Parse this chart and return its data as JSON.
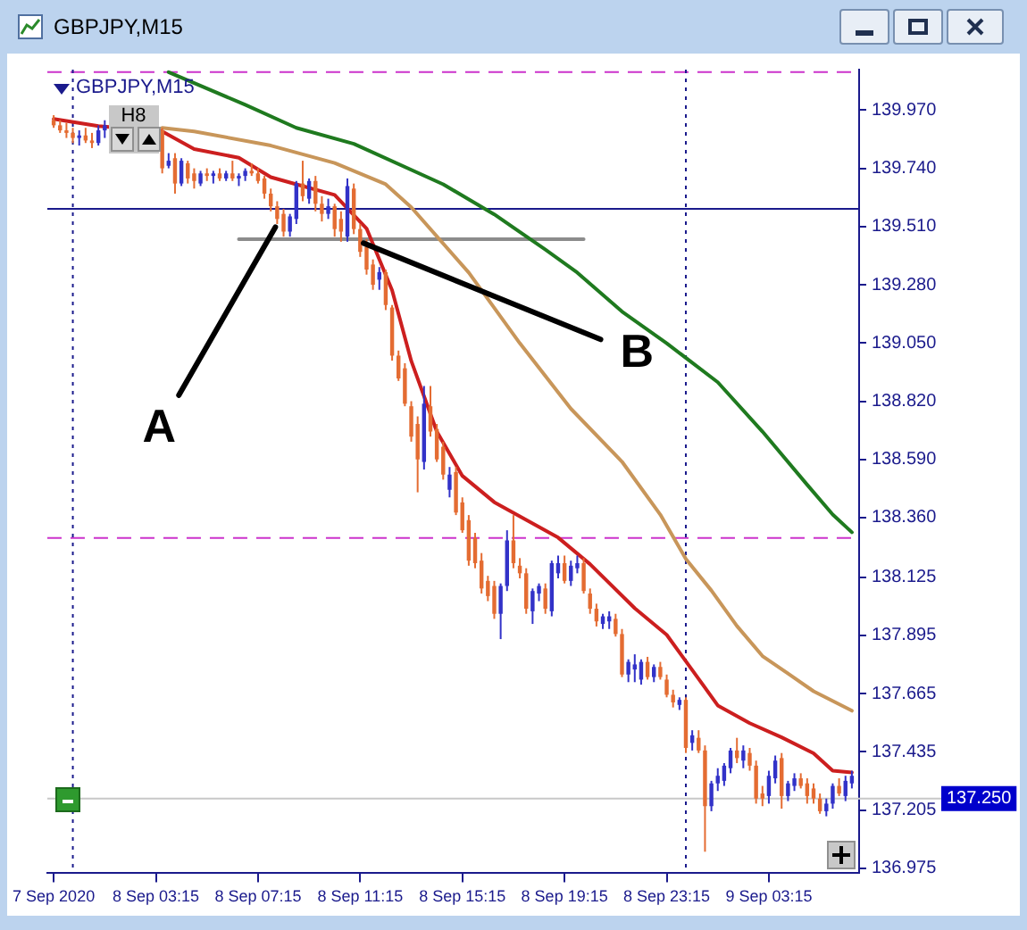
{
  "chart_data": {
    "type": "candlestick",
    "title": "GBPJPY,M15",
    "x": [
      "2020-09-07T23:15",
      "2020-09-07T23:30",
      "2020-09-07T23:45",
      "2020-09-08T00:00",
      "2020-09-08T00:15",
      "2020-09-08T00:30",
      "2020-09-08T00:45",
      "2020-09-08T01:00",
      "2020-09-08T01:15",
      "2020-09-08T03:30",
      "2020-09-08T03:45",
      "2020-09-08T04:00",
      "2020-09-08T04:15",
      "2020-09-08T04:30",
      "2020-09-08T04:45",
      "2020-09-08T05:00",
      "2020-09-08T05:15",
      "2020-09-08T05:30",
      "2020-09-08T05:45",
      "2020-09-08T06:00",
      "2020-09-08T06:15",
      "2020-09-08T06:30",
      "2020-09-08T06:45",
      "2020-09-08T07:00",
      "2020-09-08T07:15",
      "2020-09-08T07:30",
      "2020-09-08T07:45",
      "2020-09-08T08:00",
      "2020-09-08T08:15",
      "2020-09-08T08:30",
      "2020-09-08T08:45",
      "2020-09-08T09:00",
      "2020-09-08T09:15",
      "2020-09-08T09:30",
      "2020-09-08T09:45",
      "2020-09-08T10:00",
      "2020-09-08T10:15",
      "2020-09-08T10:30",
      "2020-09-08T10:45",
      "2020-09-08T11:00",
      "2020-09-08T11:15",
      "2020-09-08T11:30",
      "2020-09-08T11:45",
      "2020-09-08T12:00",
      "2020-09-08T12:15",
      "2020-09-08T12:30",
      "2020-09-08T12:45",
      "2020-09-08T13:00",
      "2020-09-08T13:15",
      "2020-09-08T13:30",
      "2020-09-08T13:45",
      "2020-09-08T14:00",
      "2020-09-08T14:15",
      "2020-09-08T14:30",
      "2020-09-08T14:45",
      "2020-09-08T15:00",
      "2020-09-08T15:15",
      "2020-09-08T15:30",
      "2020-09-08T15:45",
      "2020-09-08T16:00",
      "2020-09-08T16:15",
      "2020-09-08T16:30",
      "2020-09-08T16:45",
      "2020-09-08T17:00",
      "2020-09-08T17:15",
      "2020-09-08T17:30",
      "2020-09-08T17:45",
      "2020-09-08T18:00",
      "2020-09-08T18:15",
      "2020-09-08T18:30",
      "2020-09-08T18:45",
      "2020-09-08T19:00",
      "2020-09-08T19:15",
      "2020-09-08T19:30",
      "2020-09-08T19:45",
      "2020-09-08T20:00",
      "2020-09-08T20:15",
      "2020-09-08T20:30",
      "2020-09-08T20:45",
      "2020-09-08T21:00",
      "2020-09-08T21:15",
      "2020-09-08T21:30",
      "2020-09-08T21:45",
      "2020-09-08T22:00",
      "2020-09-08T22:15",
      "2020-09-08T22:30",
      "2020-09-08T22:45",
      "2020-09-08T23:00",
      "2020-09-08T23:15",
      "2020-09-08T23:30",
      "2020-09-08T23:45",
      "2020-09-09T00:00",
      "2020-09-09T00:15",
      "2020-09-09T00:30",
      "2020-09-09T00:45",
      "2020-09-09T01:00",
      "2020-09-09T01:15",
      "2020-09-09T01:30",
      "2020-09-09T01:45",
      "2020-09-09T02:00",
      "2020-09-09T02:15",
      "2020-09-09T02:30",
      "2020-09-09T02:45",
      "2020-09-09T03:00",
      "2020-09-09T03:15",
      "2020-09-09T03:30",
      "2020-09-09T03:45",
      "2020-09-09T04:00",
      "2020-09-09T04:15",
      "2020-09-09T04:30",
      "2020-09-09T04:45",
      "2020-09-09T05:00",
      "2020-09-09T05:15",
      "2020-09-09T05:30",
      "2020-09-09T05:45",
      "2020-09-09T06:00",
      "2020-09-09T06:15",
      "2020-09-09T06:30"
    ],
    "ohlc": [
      [
        139.93,
        139.95,
        139.9,
        139.91
      ],
      [
        139.91,
        139.93,
        139.88,
        139.89
      ],
      [
        139.89,
        139.92,
        139.86,
        139.88
      ],
      [
        139.88,
        139.9,
        139.84,
        139.86
      ],
      [
        139.86,
        139.89,
        139.83,
        139.87
      ],
      [
        139.87,
        139.9,
        139.84,
        139.85
      ],
      [
        139.85,
        139.88,
        139.82,
        139.84
      ],
      [
        139.84,
        139.91,
        139.83,
        139.89
      ],
      [
        139.89,
        139.93,
        139.86,
        139.91
      ],
      [
        139.89,
        139.9,
        139.72,
        139.74
      ],
      [
        139.75,
        139.8,
        139.74,
        139.77
      ],
      [
        139.78,
        139.8,
        139.64,
        139.68
      ],
      [
        139.68,
        139.78,
        139.67,
        139.77
      ],
      [
        139.76,
        139.77,
        139.68,
        139.7
      ],
      [
        139.72,
        139.74,
        139.66,
        139.69
      ],
      [
        139.68,
        139.73,
        139.67,
        139.72
      ],
      [
        139.72,
        139.74,
        139.69,
        139.71
      ],
      [
        139.71,
        139.73,
        139.68,
        139.72
      ],
      [
        139.72,
        139.74,
        139.69,
        139.7
      ],
      [
        139.7,
        139.73,
        139.69,
        139.72
      ],
      [
        139.72,
        139.77,
        139.69,
        139.7
      ],
      [
        139.7,
        139.72,
        139.67,
        139.71
      ],
      [
        139.71,
        139.74,
        139.69,
        139.73
      ],
      [
        139.73,
        139.76,
        139.71,
        139.72
      ],
      [
        139.72,
        139.74,
        139.68,
        139.69
      ],
      [
        139.7,
        139.71,
        139.62,
        139.64
      ],
      [
        139.64,
        139.66,
        139.57,
        139.59
      ],
      [
        139.59,
        139.61,
        139.52,
        139.54
      ],
      [
        139.56,
        139.58,
        139.47,
        139.49
      ],
      [
        139.49,
        139.56,
        139.47,
        139.55
      ],
      [
        139.54,
        139.69,
        139.52,
        139.68
      ],
      [
        139.68,
        139.77,
        139.61,
        139.63
      ],
      [
        139.62,
        139.7,
        139.6,
        139.69
      ],
      [
        139.69,
        139.71,
        139.57,
        139.6
      ],
      [
        139.6,
        139.63,
        139.53,
        139.56
      ],
      [
        139.56,
        139.62,
        139.54,
        139.59
      ],
      [
        139.59,
        139.6,
        139.47,
        139.5
      ],
      [
        139.54,
        139.57,
        139.45,
        139.49
      ],
      [
        139.47,
        139.7,
        139.45,
        139.67
      ],
      [
        139.66,
        139.68,
        139.48,
        139.5
      ],
      [
        139.5,
        139.52,
        139.39,
        139.41
      ],
      [
        139.43,
        139.46,
        139.32,
        139.34
      ],
      [
        139.36,
        139.38,
        139.26,
        139.28
      ],
      [
        139.3,
        139.35,
        139.26,
        139.33
      ],
      [
        139.33,
        139.34,
        139.18,
        139.2
      ],
      [
        139.19,
        139.2,
        138.98,
        139.0
      ],
      [
        139.0,
        139.02,
        138.9,
        138.91
      ],
      [
        138.95,
        138.97,
        138.8,
        138.81
      ],
      [
        138.8,
        138.82,
        138.66,
        138.68
      ],
      [
        138.73,
        138.76,
        138.46,
        138.59
      ],
      [
        138.58,
        138.88,
        138.55,
        138.81
      ],
      [
        138.8,
        138.88,
        138.68,
        138.7
      ],
      [
        138.71,
        138.73,
        138.58,
        138.59
      ],
      [
        138.64,
        138.66,
        138.51,
        138.53
      ],
      [
        138.47,
        138.56,
        138.44,
        138.53
      ],
      [
        138.54,
        138.56,
        138.37,
        138.38
      ],
      [
        138.42,
        138.44,
        138.3,
        138.31
      ],
      [
        138.35,
        138.37,
        138.17,
        138.19
      ],
      [
        138.28,
        138.3,
        138.16,
        138.18
      ],
      [
        138.19,
        138.22,
        138.06,
        138.08
      ],
      [
        138.11,
        138.13,
        138.03,
        138.05
      ],
      [
        138.09,
        138.11,
        137.96,
        137.98
      ],
      [
        137.98,
        138.1,
        137.88,
        138.09
      ],
      [
        138.09,
        138.31,
        138.07,
        138.27
      ],
      [
        138.27,
        138.37,
        138.16,
        138.18
      ],
      [
        138.17,
        138.2,
        138.12,
        138.14
      ],
      [
        138.14,
        138.16,
        137.98,
        138.0
      ],
      [
        137.99,
        138.08,
        137.94,
        138.07
      ],
      [
        138.06,
        138.1,
        138.03,
        138.09
      ],
      [
        138.08,
        138.1,
        137.98,
        138.0
      ],
      [
        137.99,
        138.19,
        137.97,
        138.18
      ],
      [
        138.14,
        138.21,
        138.12,
        138.18
      ],
      [
        138.18,
        138.21,
        138.1,
        138.11
      ],
      [
        138.11,
        138.19,
        138.09,
        138.17
      ],
      [
        138.16,
        138.21,
        138.14,
        138.18
      ],
      [
        138.18,
        138.2,
        138.06,
        138.07
      ],
      [
        138.06,
        138.08,
        137.98,
        138.0
      ],
      [
        138.0,
        138.02,
        137.93,
        137.95
      ],
      [
        137.94,
        137.98,
        137.92,
        137.97
      ],
      [
        137.95,
        137.99,
        137.92,
        137.97
      ],
      [
        137.96,
        137.98,
        137.89,
        137.9
      ],
      [
        137.9,
        137.92,
        137.73,
        137.74
      ],
      [
        137.74,
        137.8,
        137.71,
        137.79
      ],
      [
        137.76,
        137.82,
        137.71,
        137.78
      ],
      [
        137.72,
        137.8,
        137.7,
        137.79
      ],
      [
        137.79,
        137.81,
        137.72,
        137.73
      ],
      [
        137.73,
        137.78,
        137.71,
        137.77
      ],
      [
        137.77,
        137.79,
        137.72,
        137.73
      ],
      [
        137.72,
        137.74,
        137.65,
        137.66
      ],
      [
        137.66,
        137.68,
        137.61,
        137.63
      ],
      [
        137.62,
        137.65,
        137.6,
        137.64
      ],
      [
        137.64,
        137.65,
        137.43,
        137.45
      ],
      [
        137.47,
        137.52,
        137.44,
        137.5
      ],
      [
        137.49,
        137.52,
        137.43,
        137.44
      ],
      [
        137.44,
        137.46,
        137.04,
        137.22
      ],
      [
        137.22,
        137.32,
        137.2,
        137.31
      ],
      [
        137.31,
        137.37,
        137.28,
        137.34
      ],
      [
        137.32,
        137.39,
        137.3,
        137.38
      ],
      [
        137.37,
        137.45,
        137.35,
        137.44
      ],
      [
        137.44,
        137.49,
        137.39,
        137.41
      ],
      [
        137.4,
        137.46,
        137.37,
        137.44
      ],
      [
        137.43,
        137.45,
        137.36,
        137.38
      ],
      [
        137.38,
        137.4,
        137.23,
        137.25
      ],
      [
        137.27,
        137.3,
        137.22,
        137.25
      ],
      [
        137.26,
        137.36,
        137.23,
        137.34
      ],
      [
        137.33,
        137.42,
        137.31,
        137.4
      ],
      [
        137.41,
        137.43,
        137.21,
        137.26
      ],
      [
        137.26,
        137.32,
        137.24,
        137.31
      ],
      [
        137.3,
        137.35,
        137.28,
        137.33
      ],
      [
        137.33,
        137.35,
        137.29,
        137.3
      ],
      [
        137.31,
        137.33,
        137.23,
        137.26
      ],
      [
        137.29,
        137.31,
        137.23,
        137.25
      ],
      [
        137.25,
        137.27,
        137.19,
        137.2
      ],
      [
        137.2,
        137.25,
        137.18,
        137.23
      ],
      [
        137.23,
        137.31,
        137.21,
        137.3
      ],
      [
        137.3,
        137.33,
        137.26,
        137.27
      ],
      [
        137.26,
        137.34,
        137.24,
        137.32
      ],
      [
        137.31,
        137.36,
        137.29,
        137.34
      ]
    ],
    "colors": [
      "#e46c32",
      "#e46c32",
      "#e46c32",
      "#e46c32",
      "#3232c8",
      "#e46c32",
      "#e46c32",
      "#3232c8",
      "#3232c8",
      "#e46c32",
      "#3232c8",
      "#e46c32",
      "#3232c8",
      "#e46c32",
      "#e46c32",
      "#3232c8",
      "#e46c32",
      "#3232c8",
      "#e46c32",
      "#3232c8",
      "#e46c32",
      "#3232c8",
      "#3232c8",
      "#e46c32",
      "#e46c32",
      "#e46c32",
      "#e46c32",
      "#e46c32",
      "#e46c32",
      "#3232c8",
      "#3232c8",
      "#e46c32",
      "#3232c8",
      "#e46c32",
      "#e46c32",
      "#3232c8",
      "#e46c32",
      "#e46c32",
      "#3232c8",
      "#e46c32",
      "#e46c32",
      "#e46c32",
      "#e46c32",
      "#3232c8",
      "#e46c32",
      "#e46c32",
      "#e46c32",
      "#e46c32",
      "#e46c32",
      "#e46c32",
      "#3232c8",
      "#e46c32",
      "#e46c32",
      "#e46c32",
      "#3232c8",
      "#e46c32",
      "#e46c32",
      "#e46c32",
      "#e46c32",
      "#e46c32",
      "#e46c32",
      "#e46c32",
      "#3232c8",
      "#3232c8",
      "#e46c32",
      "#e46c32",
      "#e46c32",
      "#3232c8",
      "#3232c8",
      "#e46c32",
      "#3232c8",
      "#3232c8",
      "#e46c32",
      "#3232c8",
      "#3232c8",
      "#e46c32",
      "#e46c32",
      "#e46c32",
      "#3232c8",
      "#3232c8",
      "#e46c32",
      "#e46c32",
      "#3232c8",
      "#3232c8",
      "#3232c8",
      "#e46c32",
      "#3232c8",
      "#e46c32",
      "#e46c32",
      "#e46c32",
      "#3232c8",
      "#e46c32",
      "#3232c8",
      "#e46c32",
      "#e46c32",
      "#3232c8",
      "#3232c8",
      "#3232c8",
      "#3232c8",
      "#e46c32",
      "#3232c8",
      "#e46c32",
      "#e46c32",
      "#e46c32",
      "#3232c8",
      "#3232c8",
      "#e46c32",
      "#3232c8",
      "#3232c8",
      "#e46c32",
      "#e46c32",
      "#e46c32",
      "#e46c32",
      "#3232c8",
      "#3232c8",
      "#e46c32",
      "#3232c8",
      "#3232c8"
    ],
    "series": [
      {
        "type": "line",
        "color": "#cc1f1f",
        "x": [
          "2020-09-07T23:15",
          "2020-09-08T01:00",
          "2020-09-08T03:30",
          "2020-09-08T04:45",
          "2020-09-08T06:30",
          "2020-09-08T07:45",
          "2020-09-08T08:45",
          "2020-09-08T10:15",
          "2020-09-08T11:30",
          "2020-09-08T12:30",
          "2020-09-08T13:15",
          "2020-09-08T14:15",
          "2020-09-08T15:15",
          "2020-09-08T16:30",
          "2020-09-08T17:45",
          "2020-09-08T19:00",
          "2020-09-08T20:15",
          "2020-09-08T22:00",
          "2020-09-08T23:15",
          "2020-09-09T00:30",
          "2020-09-09T01:15",
          "2020-09-09T02:30",
          "2020-09-09T03:45",
          "2020-09-09T05:00",
          "2020-09-09T05:45",
          "2020-09-09T06:30"
        ],
        "values": [
          139.935,
          139.907,
          139.886,
          139.816,
          139.782,
          139.705,
          139.677,
          139.635,
          139.502,
          139.258,
          138.979,
          138.7,
          138.525,
          138.421,
          138.351,
          138.281,
          138.176,
          138.002,
          137.897,
          137.723,
          137.618,
          137.548,
          137.492,
          137.429,
          137.36,
          137.353
        ]
      },
      {
        "type": "line",
        "color": "#c8965a",
        "x": [
          "2020-09-08T03:30",
          "2020-09-08T04:45",
          "2020-09-08T07:45",
          "2020-09-08T10:15",
          "2020-09-08T12:15",
          "2020-09-08T13:15",
          "2020-09-08T15:30",
          "2020-09-08T17:30",
          "2020-09-08T19:30",
          "2020-09-08T21:30",
          "2020-09-08T23:00",
          "2020-09-09T00:00",
          "2020-09-09T01:00",
          "2020-09-09T02:00",
          "2020-09-09T03:00",
          "2020-09-09T04:00",
          "2020-09-09T05:00",
          "2020-09-09T06:30"
        ],
        "values": [
          139.9,
          139.886,
          139.83,
          139.761,
          139.677,
          139.586,
          139.328,
          139.049,
          138.79,
          138.581,
          138.372,
          138.197,
          138.072,
          137.932,
          137.813,
          137.744,
          137.674,
          137.597
        ]
      },
      {
        "type": "line",
        "color": "#1f7a1f",
        "x": [
          "2020-09-08T03:45",
          "2020-09-08T06:45",
          "2020-09-08T08:45",
          "2020-09-08T11:00",
          "2020-09-08T14:30",
          "2020-09-08T16:30",
          "2020-09-08T18:30",
          "2020-09-08T19:45",
          "2020-09-08T21:30",
          "2020-09-08T23:15",
          "2020-09-09T01:15",
          "2020-09-09T03:00",
          "2020-09-09T04:45",
          "2020-09-09T05:45",
          "2020-09-09T06:30"
        ],
        "values": [
          140.12,
          139.991,
          139.9,
          139.837,
          139.677,
          139.558,
          139.419,
          139.328,
          139.174,
          139.049,
          138.895,
          138.7,
          138.49,
          138.372,
          138.302
        ]
      },
      {
        "type": "line",
        "color": "#8c8c8c",
        "x": [
          "2020-09-08T06:30",
          "2020-09-08T20:00"
        ],
        "values": [
          139.46,
          139.46
        ]
      }
    ],
    "xlim": [
      "2020-09-07T23:00",
      "2020-09-09T06:47"
    ],
    "xticks": [
      {
        "value": "2020-09-07T23:15",
        "label": "7 Sep 2020"
      },
      {
        "value": "2020-09-08T03:15",
        "label": "8 Sep 03:15"
      },
      {
        "value": "2020-09-08T07:15",
        "label": "8 Sep 07:15"
      },
      {
        "value": "2020-09-08T11:15",
        "label": "8 Sep 11:15"
      },
      {
        "value": "2020-09-08T15:15",
        "label": "8 Sep 15:15"
      },
      {
        "value": "2020-09-08T19:15",
        "label": "8 Sep 19:15"
      },
      {
        "value": "2020-09-08T23:15",
        "label": "8 Sep 23:15"
      },
      {
        "value": "2020-09-09T03:15",
        "label": "9 Sep 03:15"
      }
    ],
    "ylim": [
      136.955,
      140.13
    ],
    "yticks": [
      {
        "value": 139.97,
        "label": "139.970"
      },
      {
        "value": 139.74,
        "label": "139.740"
      },
      {
        "value": 139.51,
        "label": "139.510"
      },
      {
        "value": 139.28,
        "label": "139.280"
      },
      {
        "value": 139.05,
        "label": "139.050"
      },
      {
        "value": 138.82,
        "label": "138.820"
      },
      {
        "value": 138.59,
        "label": "138.590"
      },
      {
        "value": 138.36,
        "label": "138.360"
      },
      {
        "value": 138.125,
        "label": "138.125"
      },
      {
        "value": 137.895,
        "label": "137.895"
      },
      {
        "value": 137.665,
        "label": "137.665"
      },
      {
        "value": 137.435,
        "label": "137.435"
      },
      {
        "value": 137.205,
        "label": "137.205"
      },
      {
        "value": 136.975,
        "label": "136.975"
      }
    ],
    "grid": false,
    "legend": false,
    "marker": "none",
    "ref_lines": [
      {
        "axis": "y",
        "value": 140.12,
        "color": "#cc33cc",
        "line_style": "dashed"
      },
      {
        "axis": "y",
        "value": 138.28,
        "color": "#cc33cc",
        "line_style": "dashed"
      },
      {
        "axis": "y",
        "value": 139.58,
        "color": "#1a1a8c",
        "line_style": "solid"
      },
      {
        "axis": "y",
        "value": 137.25,
        "label": "137.250",
        "color": "#c8c8c8",
        "line_style": "solid"
      },
      {
        "axis": "x",
        "value": "2020-09-08T00:00",
        "color": "#1a1a8c",
        "line_style": "dotted"
      },
      {
        "axis": "x",
        "value": "2020-09-09T00:00",
        "color": "#1a1a8c",
        "line_style": "dotted"
      }
    ],
    "annotations": [
      "H8",
      {
        "text": "A",
        "x": "2020-09-08T08:00",
        "y": 139.52
      },
      {
        "text": "B",
        "x": "2020-09-08T11:15",
        "y": 139.45
      }
    ]
  }
}
